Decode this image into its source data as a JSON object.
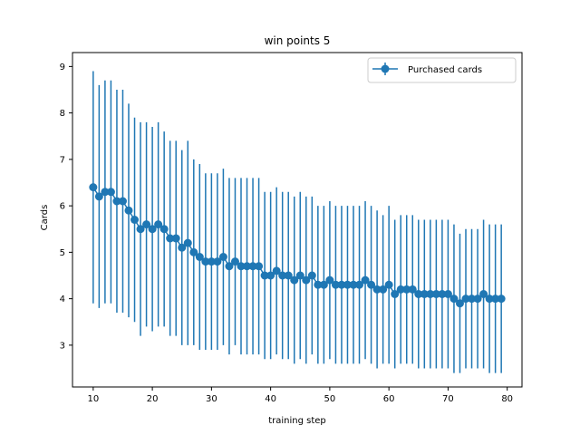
{
  "chart_data": {
    "type": "line",
    "title": "win points 5",
    "xlabel": "training step",
    "ylabel": "Cards",
    "xlim": [
      6.5,
      82.5
    ],
    "ylim": [
      2.1,
      9.3
    ],
    "xticks": [
      10,
      20,
      30,
      40,
      50,
      60,
      70,
      80
    ],
    "yticks": [
      3,
      4,
      5,
      6,
      7,
      8,
      9
    ],
    "legend_position": "top-right",
    "grid": false,
    "series": [
      {
        "name": "Purchased cards",
        "color": "#1f77b4",
        "x": [
          10,
          11,
          12,
          13,
          14,
          15,
          16,
          17,
          18,
          19,
          20,
          21,
          22,
          23,
          24,
          25,
          26,
          27,
          28,
          29,
          30,
          31,
          32,
          33,
          34,
          35,
          36,
          37,
          38,
          39,
          40,
          41,
          42,
          43,
          44,
          45,
          46,
          47,
          48,
          49,
          50,
          51,
          52,
          53,
          54,
          55,
          56,
          57,
          58,
          59,
          60,
          61,
          62,
          63,
          64,
          65,
          66,
          67,
          68,
          69,
          70,
          71,
          72,
          73,
          74,
          75,
          76,
          77,
          78,
          79
        ],
        "y": [
          6.4,
          6.2,
          6.3,
          6.3,
          6.1,
          6.1,
          5.9,
          5.7,
          5.5,
          5.6,
          5.5,
          5.6,
          5.5,
          5.3,
          5.3,
          5.1,
          5.2,
          5.0,
          4.9,
          4.8,
          4.8,
          4.8,
          4.9,
          4.7,
          4.8,
          4.7,
          4.7,
          4.7,
          4.7,
          4.5,
          4.5,
          4.6,
          4.5,
          4.5,
          4.4,
          4.5,
          4.4,
          4.5,
          4.3,
          4.3,
          4.4,
          4.3,
          4.3,
          4.3,
          4.3,
          4.3,
          4.4,
          4.3,
          4.2,
          4.2,
          4.3,
          4.1,
          4.2,
          4.2,
          4.2,
          4.1,
          4.1,
          4.1,
          4.1,
          4.1,
          4.1,
          4.0,
          3.9,
          4.0,
          4.0,
          4.0,
          4.1,
          4.0,
          4.0,
          4.0
        ],
        "err": [
          2.5,
          2.4,
          2.4,
          2.4,
          2.4,
          2.4,
          2.3,
          2.2,
          2.3,
          2.2,
          2.2,
          2.2,
          2.1,
          2.1,
          2.1,
          2.1,
          2.2,
          2.0,
          2.0,
          1.9,
          1.9,
          1.9,
          1.9,
          1.9,
          1.8,
          1.9,
          1.9,
          1.9,
          1.9,
          1.8,
          1.8,
          1.8,
          1.8,
          1.8,
          1.8,
          1.8,
          1.8,
          1.7,
          1.7,
          1.7,
          1.7,
          1.7,
          1.7,
          1.7,
          1.7,
          1.7,
          1.7,
          1.7,
          1.7,
          1.6,
          1.7,
          1.6,
          1.6,
          1.6,
          1.6,
          1.6,
          1.6,
          1.6,
          1.6,
          1.6,
          1.6,
          1.6,
          1.5,
          1.5,
          1.5,
          1.5,
          1.6,
          1.6,
          1.6,
          1.6
        ]
      }
    ]
  }
}
